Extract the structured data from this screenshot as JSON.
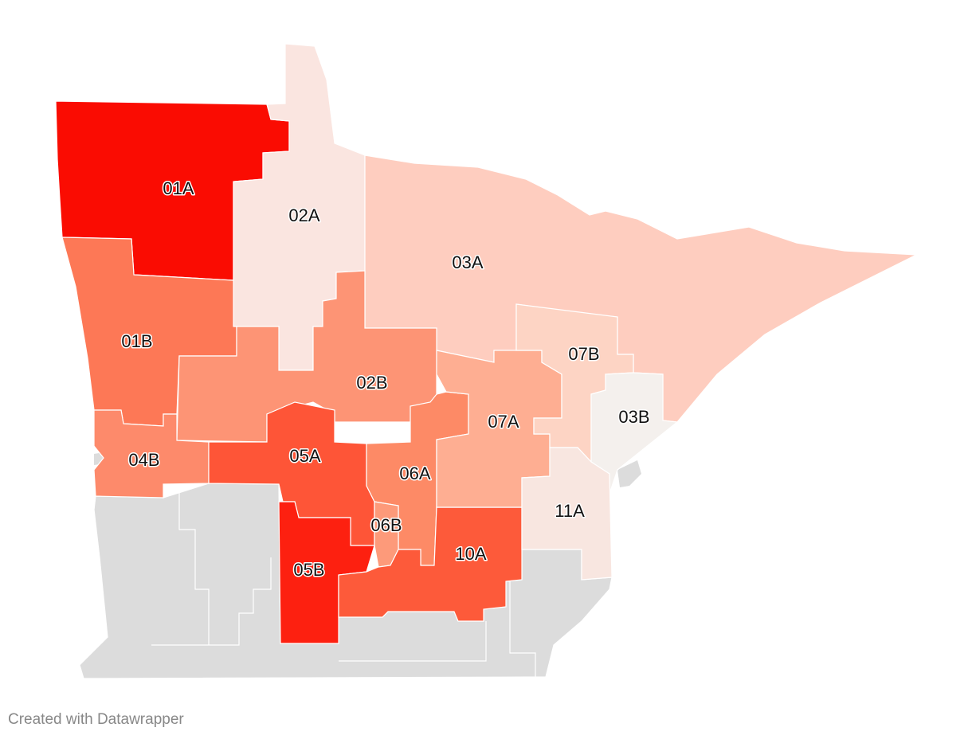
{
  "regions": [
    {
      "label": "01A",
      "color": "#fa0c02"
    },
    {
      "label": "02A",
      "color": "#fae5e0"
    },
    {
      "label": "03A",
      "color": "#fecdbf"
    },
    {
      "label": "01B",
      "color": "#fd7856"
    },
    {
      "label": "02B",
      "color": "#fd9475"
    },
    {
      "label": "04B",
      "color": "#fd8a6b"
    },
    {
      "label": "05A",
      "color": "#fe5537"
    },
    {
      "label": "06A",
      "color": "#fd8a66"
    },
    {
      "label": "06B",
      "color": "#fd9a7a"
    },
    {
      "label": "05B",
      "color": "#fd2010"
    },
    {
      "label": "10A",
      "color": "#fd5a3a"
    },
    {
      "label": "07A",
      "color": "#feae92"
    },
    {
      "label": "07B",
      "color": "#fdd4c4"
    },
    {
      "label": "03B",
      "color": "#f4f0ed"
    },
    {
      "label": "11A",
      "color": "#f8e6e0"
    }
  ],
  "footer": "Created with Datawrapper"
}
